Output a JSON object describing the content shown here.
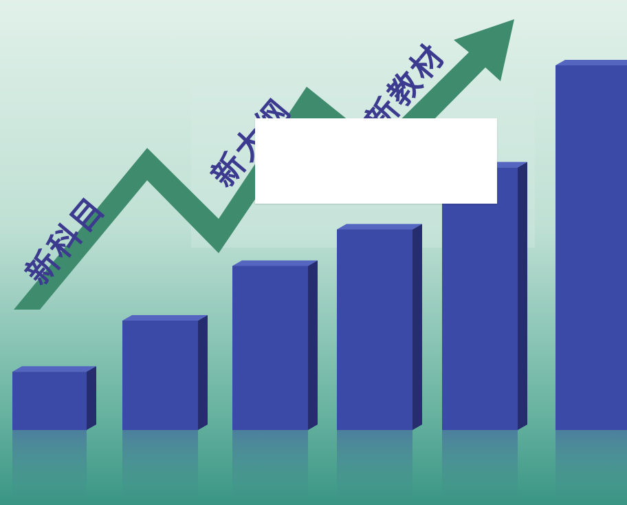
{
  "labels": {
    "subject": "新科目",
    "outline": "新大纲",
    "textbook": "新教材"
  },
  "colors": {
    "background_top": "#dbeee6",
    "background_bottom": "#3f9a8a",
    "arrow": "#3e8a6c",
    "label_text": "#3b3a8e",
    "bar_front": "#3b4aa6",
    "bar_side": "#252d6e",
    "bar_top": "#5566c0",
    "box": "#ffffff"
  },
  "bars": {
    "relative_heights": [
      0.16,
      0.3,
      0.45,
      0.55,
      0.72,
      1.0
    ]
  }
}
